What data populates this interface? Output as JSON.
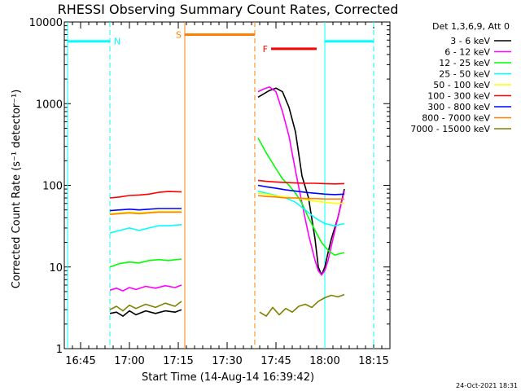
{
  "chart_data": {
    "type": "line",
    "title": "RHESSI Observing Summary Count Rates, Corrected",
    "xlabel": "Start Time (14-Aug-14 16:39:42)",
    "ylabel": "Corrected Count Rate (s⁻¹ detector⁻¹)",
    "x_unit": "minutes after 16:40",
    "xlim": [
      0,
      100
    ],
    "ylim": [
      1,
      10000
    ],
    "y_scale": "log",
    "x_ticks": [
      {
        "x": 5,
        "label": "16:45"
      },
      {
        "x": 20,
        "label": "17:00"
      },
      {
        "x": 35,
        "label": "17:15"
      },
      {
        "x": 50,
        "label": "17:30"
      },
      {
        "x": 65,
        "label": "17:45"
      },
      {
        "x": 80,
        "label": "18:00"
      },
      {
        "x": 95,
        "label": "18:15"
      }
    ],
    "y_ticks": [
      {
        "y": 1,
        "label": "1"
      },
      {
        "y": 10,
        "label": "10"
      },
      {
        "y": 100,
        "label": "100"
      },
      {
        "y": 1000,
        "label": "1000"
      },
      {
        "y": 10000,
        "label": "10000"
      }
    ],
    "legend_header": "Det 1,3,6,9, Att 0",
    "legend_position": "outside-right",
    "grid": false,
    "series": [
      {
        "name": "3 - 6 keV",
        "color": "#000000",
        "segments": [
          {
            "x": [
              14,
              16,
              18,
              20,
              22,
              25,
              28,
              31,
              34,
              36
            ],
            "y": [
              2.7,
              2.8,
              2.5,
              2.9,
              2.6,
              2.9,
              2.7,
              2.9,
              2.8,
              3.0
            ]
          },
          {
            "x": [
              59.5,
              61,
              63,
              65,
              67,
              69,
              71,
              73,
              75,
              77,
              78,
              79,
              80,
              81,
              82,
              84,
              86
            ],
            "y": [
              1200,
              1300,
              1450,
              1550,
              1400,
              900,
              450,
              130,
              70,
              22,
              10,
              8,
              10,
              15,
              22,
              40,
              90
            ]
          }
        ]
      },
      {
        "name": "6 - 12 keV",
        "color": "#ff00ff",
        "segments": [
          {
            "x": [
              14,
              16,
              18,
              20,
              22,
              25,
              28,
              31,
              34,
              36
            ],
            "y": [
              5.2,
              5.5,
              5.1,
              5.6,
              5.3,
              5.8,
              5.5,
              5.9,
              5.6,
              6.0
            ]
          },
          {
            "x": [
              59.5,
              61,
              63,
              65,
              67,
              69,
              71,
              73,
              75,
              77,
              78,
              79,
              80,
              81,
              82,
              84,
              86
            ],
            "y": [
              1400,
              1500,
              1600,
              1400,
              800,
              400,
              150,
              60,
              25,
              12,
              9,
              8,
              9,
              12,
              18,
              40,
              85
            ]
          }
        ]
      },
      {
        "name": "12 - 25 keV",
        "color": "#00ff00",
        "segments": [
          {
            "x": [
              14,
              17,
              20,
              23,
              26,
              29,
              32,
              36
            ],
            "y": [
              10,
              11,
              11.5,
              11.2,
              12,
              12.3,
              12,
              12.5
            ]
          },
          {
            "x": [
              59.5,
              62,
              65,
              67,
              69,
              71,
              73,
              75,
              77,
              79,
              81,
              83,
              86
            ],
            "y": [
              380,
              250,
              160,
              120,
              100,
              80,
              60,
              40,
              28,
              20,
              16,
              14,
              15
            ]
          }
        ]
      },
      {
        "name": "25 - 50 keV",
        "color": "#00ffff",
        "segments": [
          {
            "x": [
              14,
              17,
              20,
              23,
              26,
              29,
              32,
              36
            ],
            "y": [
              26,
              28,
              30,
              28,
              30,
              32,
              32,
              33
            ]
          },
          {
            "x": [
              59.5,
              62,
              65,
              68,
              71,
              74,
              77,
              80,
              83,
              86
            ],
            "y": [
              85,
              80,
              75,
              70,
              62,
              50,
              40,
              34,
              32,
              34
            ]
          }
        ]
      },
      {
        "name": "50 - 100 keV",
        "color": "#ffff00",
        "segments": [
          {
            "x": [
              14,
              17,
              20,
              23,
              26,
              29,
              32,
              36
            ],
            "y": [
              45,
              46,
              47,
              46,
              47,
              48,
              48,
              48
            ]
          },
          {
            "x": [
              59.5,
              62,
              65,
              68,
              71,
              74,
              77,
              80,
              83,
              86
            ],
            "y": [
              80,
              78,
              74,
              72,
              70,
              67,
              64,
              62,
              60,
              60
            ]
          }
        ]
      },
      {
        "name": "100 - 300 keV",
        "color": "#ff0000",
        "segments": [
          {
            "x": [
              14,
              17,
              20,
              23,
              26,
              29,
              32,
              36
            ],
            "y": [
              70,
              72,
              75,
              76,
              78,
              82,
              84,
              83
            ]
          },
          {
            "x": [
              59.5,
              62,
              65,
              68,
              71,
              74,
              77,
              80,
              83,
              86
            ],
            "y": [
              115,
              112,
              110,
              108,
              107,
              106,
              106,
              105,
              104,
              105
            ]
          }
        ]
      },
      {
        "name": "300 - 800 keV",
        "color": "#0000ff",
        "segments": [
          {
            "x": [
              14,
              17,
              20,
              23,
              26,
              29,
              32,
              36
            ],
            "y": [
              49,
              50,
              51,
              50,
              51,
              52,
              52,
              52
            ]
          },
          {
            "x": [
              59.5,
              62,
              65,
              68,
              71,
              74,
              77,
              80,
              83,
              86
            ],
            "y": [
              100,
              96,
              92,
              88,
              85,
              82,
              80,
              78,
              77,
              78
            ]
          }
        ]
      },
      {
        "name": "800 - 7000 keV",
        "color": "#ff8000",
        "segments": [
          {
            "x": [
              14,
              17,
              20,
              23,
              26,
              29,
              32,
              36
            ],
            "y": [
              44,
              45,
              46,
              45,
              46,
              47,
              47,
              47
            ]
          },
          {
            "x": [
              59.5,
              62,
              65,
              68,
              71,
              74,
              77,
              80,
              83,
              86
            ],
            "y": [
              75,
              73,
              72,
              70,
              70,
              69,
              69,
              68,
              68,
              68
            ]
          }
        ]
      },
      {
        "name": "7000 - 15000 keV",
        "color": "#808000",
        "segments": [
          {
            "x": [
              14,
              16,
              18,
              20,
              22,
              25,
              28,
              31,
              34,
              36
            ],
            "y": [
              3.0,
              3.3,
              2.9,
              3.4,
              3.1,
              3.5,
              3.2,
              3.6,
              3.3,
              3.8
            ]
          },
          {
            "x": [
              60,
              62,
              64,
              66,
              68,
              70,
              72,
              74,
              76,
              78,
              80,
              82,
              84,
              86
            ],
            "y": [
              2.8,
              2.5,
              3.2,
              2.6,
              3.1,
              2.8,
              3.3,
              3.5,
              3.2,
              3.8,
              4.2,
              4.5,
              4.3,
              4.6
            ]
          }
        ]
      }
    ],
    "annotations": [
      {
        "type": "vline",
        "x": 1,
        "color": "#00ffff",
        "style": "solid"
      },
      {
        "type": "vline",
        "x": 14,
        "color": "#00ffff",
        "style": "dashed"
      },
      {
        "type": "hbar",
        "x": [
          1,
          14
        ],
        "y": 5800,
        "color": "#00ffff",
        "label": "N"
      },
      {
        "type": "vline",
        "x": 37,
        "color": "#ff8000",
        "style": "solid"
      },
      {
        "type": "vline",
        "x": 58.5,
        "color": "#ff8000",
        "style": "dashed"
      },
      {
        "type": "hbar",
        "x": [
          37,
          58.5
        ],
        "y": 7000,
        "color": "#ff8000",
        "label": "S"
      },
      {
        "type": "hbar",
        "x": [
          63.5,
          77.5
        ],
        "y": 4700,
        "color": "#ff0000",
        "label": "F"
      },
      {
        "type": "vline",
        "x": 80,
        "color": "#00ffff",
        "style": "solid"
      },
      {
        "type": "vline",
        "x": 95,
        "color": "#00ffff",
        "style": "dashed"
      },
      {
        "type": "hbar",
        "x": [
          80,
          95
        ],
        "y": 5800,
        "color": "#00ffff",
        "label": ""
      }
    ]
  },
  "footer": {
    "timestamp": "24-Oct-2021 18:31"
  }
}
